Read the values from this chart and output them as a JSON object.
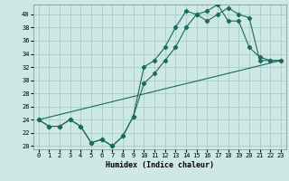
{
  "title": "",
  "xlabel": "Humidex (Indice chaleur)",
  "bg_color": "#cde8e5",
  "grid_color": "#aaccca",
  "line_color": "#1a6b5a",
  "xlim": [
    -0.5,
    23.5
  ],
  "ylim": [
    19.5,
    41.5
  ],
  "xticks": [
    0,
    1,
    2,
    3,
    4,
    5,
    6,
    7,
    8,
    9,
    10,
    11,
    12,
    13,
    14,
    15,
    16,
    17,
    18,
    19,
    20,
    21,
    22,
    23
  ],
  "yticks": [
    20,
    22,
    24,
    26,
    28,
    30,
    32,
    34,
    36,
    38,
    40
  ],
  "series1": [
    24,
    23,
    23,
    24,
    23,
    20.5,
    21,
    20,
    21.5,
    24.5,
    32,
    33,
    35,
    38,
    40.5,
    40,
    39,
    40,
    41,
    40,
    39.5,
    33,
    33,
    33
  ],
  "series2": [
    24,
    23,
    23,
    24,
    23,
    20.5,
    21,
    20,
    21.5,
    24.5,
    29.5,
    31,
    33,
    35,
    38,
    40,
    40.5,
    41.5,
    39,
    39,
    35,
    33.5,
    33,
    33
  ],
  "series3": [
    24,
    24.39,
    24.78,
    25.17,
    25.57,
    25.96,
    26.35,
    26.74,
    27.13,
    27.52,
    27.91,
    28.3,
    28.7,
    29.09,
    29.48,
    29.87,
    30.26,
    30.65,
    31.04,
    31.43,
    31.83,
    32.22,
    32.61,
    33.0
  ]
}
